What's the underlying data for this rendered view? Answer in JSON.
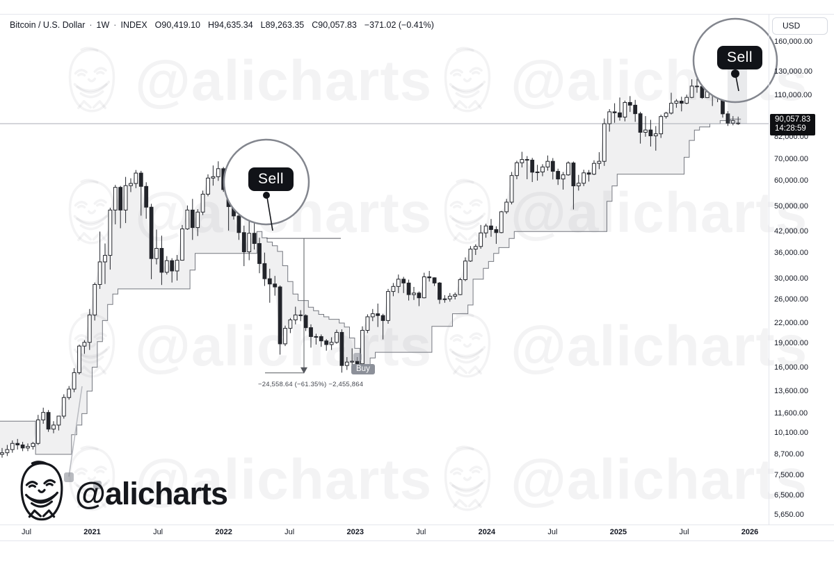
{
  "legend": {
    "symbol": "Bitcoin / U.S. Dollar",
    "sep": "·",
    "interval": "1W",
    "exchange": "INDEX",
    "o": "O90,419.10",
    "h": "H94,635.34",
    "l": "L89,263.35",
    "c": "C90,057.83",
    "change": "−371.02 (−0.41%)"
  },
  "price_axis": {
    "currency_button": "USD",
    "ticks": [
      {
        "v": 160000,
        "label": "160,000.00"
      },
      {
        "v": 130000,
        "label": "130,000.00"
      },
      {
        "v": 110000,
        "label": "110,000.00"
      },
      {
        "v": 94000,
        "label": "94,000.00"
      },
      {
        "v": 82000,
        "label": "82,000.00"
      },
      {
        "v": 70000,
        "label": "70,000.00"
      },
      {
        "v": 60000,
        "label": "60,000.00"
      },
      {
        "v": 50000,
        "label": "50,000.00"
      },
      {
        "v": 42000,
        "label": "42,000.00"
      },
      {
        "v": 36000,
        "label": "36,000.00"
      },
      {
        "v": 30000,
        "label": "30,000.00"
      },
      {
        "v": 26000,
        "label": "26,000.00"
      },
      {
        "v": 22000,
        "label": "22,000.00"
      },
      {
        "v": 19000,
        "label": "19,000.00"
      },
      {
        "v": 16000,
        "label": "16,000.00"
      },
      {
        "v": 13600,
        "label": "13,600.00"
      },
      {
        "v": 11600,
        "label": "11,600.00"
      },
      {
        "v": 10100,
        "label": "10,100.00"
      },
      {
        "v": 8700,
        "label": "8,700.00"
      },
      {
        "v": 7500,
        "label": "7,500.00"
      },
      {
        "v": 6500,
        "label": "6,500.00"
      },
      {
        "v": 5650,
        "label": "5,650.00"
      }
    ],
    "badge": {
      "price": "90,057.83",
      "countdown": "14:28:59",
      "value": 90057.83
    }
  },
  "time_axis": {
    "ticks": [
      {
        "label": "Jul",
        "bold": false
      },
      {
        "label": "2021",
        "bold": true
      },
      {
        "label": "Jul",
        "bold": false
      },
      {
        "label": "2022",
        "bold": true
      },
      {
        "label": "Jul",
        "bold": false
      },
      {
        "label": "2023",
        "bold": true
      },
      {
        "label": "Jul",
        "bold": false
      },
      {
        "label": "2024",
        "bold": true
      },
      {
        "label": "Jul",
        "bold": false
      },
      {
        "label": "2025",
        "bold": true
      },
      {
        "label": "Jul",
        "bold": false
      },
      {
        "label": "2026",
        "bold": true
      }
    ]
  },
  "watermark": {
    "handle": "@alicharts"
  },
  "logo": {
    "handle": "@alicharts"
  },
  "annotations": {
    "sell_early": {
      "label": "Sell",
      "index": 50,
      "price": 40030
    },
    "sell_late": {
      "label": "Sell",
      "index": 143,
      "price": 110000
    },
    "buy": {
      "label": "Buy",
      "index": 70,
      "price": 15800
    },
    "measure": {
      "text": "−24,558.64 (−61.35%) −2,455,864",
      "from_price": 40030.64,
      "to_price": 15472
    }
  },
  "chart_data": {
    "type": "candlestick",
    "title": "Bitcoin / U.S. Dollar · 1W · INDEX",
    "y_scale": "log",
    "ylim": [
      5650,
      175000
    ],
    "current_price": 90057.83,
    "y_ticks": [
      160000,
      130000,
      110000,
      94000,
      82000,
      70000,
      60000,
      50000,
      42000,
      36000,
      30000,
      26000,
      22000,
      19000,
      16000,
      13600,
      11600,
      10100,
      8700,
      7500,
      6500,
      5650
    ],
    "x_tick_labels": [
      "Jul",
      "2021",
      "Jul",
      "2022",
      "Jul",
      "2023",
      "Jul",
      "2024",
      "Jul",
      "2025",
      "Jul",
      "2026"
    ],
    "series_names": [
      "BTCUSD weekly candles [o,h,l,c]",
      "trailing stop line"
    ],
    "candles": [
      [
        8700,
        9100,
        8500,
        8800
      ],
      [
        8800,
        9300,
        8600,
        9000
      ],
      [
        9000,
        9600,
        8800,
        9400
      ],
      [
        9400,
        9700,
        9000,
        9300
      ],
      [
        9300,
        9500,
        8900,
        9100
      ],
      [
        9100,
        9400,
        8900,
        9200
      ],
      [
        9200,
        9500,
        9000,
        9400
      ],
      [
        9400,
        11500,
        9300,
        11100
      ],
      [
        11100,
        12100,
        10800,
        11700
      ],
      [
        11700,
        11900,
        10200,
        10400
      ],
      [
        10400,
        11000,
        10100,
        10700
      ],
      [
        10700,
        11200,
        10300,
        11400
      ],
      [
        11400,
        13300,
        11200,
        13000
      ],
      [
        13000,
        14100,
        12800,
        13800
      ],
      [
        13800,
        16000,
        13500,
        15500
      ],
      [
        15500,
        18900,
        15300,
        18700
      ],
      [
        18700,
        19500,
        17700,
        19200
      ],
      [
        19200,
        24300,
        18200,
        23300
      ],
      [
        23300,
        29300,
        22400,
        28900
      ],
      [
        28900,
        42000,
        28000,
        33900
      ],
      [
        33900,
        38600,
        29000,
        35500
      ],
      [
        35500,
        49700,
        32100,
        48900
      ],
      [
        48900,
        58400,
        44200,
        57400
      ],
      [
        57400,
        58000,
        43000,
        48900
      ],
      [
        48900,
        61800,
        44600,
        58100
      ],
      [
        58100,
        61200,
        55500,
        59000
      ],
      [
        59000,
        64900,
        57100,
        63500
      ],
      [
        63500,
        64500,
        47000,
        57800
      ],
      [
        57800,
        59500,
        46000,
        49900
      ],
      [
        49900,
        51100,
        30000,
        34700
      ],
      [
        34700,
        42600,
        33300,
        37300
      ],
      [
        37300,
        40800,
        28800,
        31500
      ],
      [
        31500,
        35300,
        31000,
        34200
      ],
      [
        34200,
        34800,
        29300,
        31800
      ],
      [
        31800,
        35600,
        29700,
        34300
      ],
      [
        34300,
        44000,
        34200,
        42800
      ],
      [
        42800,
        50500,
        42500,
        48900
      ],
      [
        48900,
        52900,
        39600,
        43200
      ],
      [
        43200,
        49200,
        40700,
        48200
      ],
      [
        48200,
        56100,
        47200,
        54700
      ],
      [
        54700,
        62900,
        53900,
        61300
      ],
      [
        61300,
        67000,
        58100,
        61900
      ],
      [
        61900,
        69000,
        60100,
        65500
      ],
      [
        65500,
        66300,
        55600,
        56500
      ],
      [
        56500,
        59100,
        42300,
        50100
      ],
      [
        50100,
        52100,
        45700,
        46900
      ],
      [
        46900,
        52000,
        39600,
        41700
      ],
      [
        41700,
        43800,
        32900,
        36400
      ],
      [
        36400,
        45800,
        34300,
        41500
      ],
      [
        41500,
        44500,
        37000,
        38600
      ],
      [
        38600,
        40200,
        31300,
        33500
      ],
      [
        33500,
        36200,
        28600,
        30100
      ],
      [
        30100,
        32300,
        25400,
        29000
      ],
      [
        29000,
        30700,
        26700,
        28400
      ],
      [
        28400,
        28700,
        17600,
        19000
      ],
      [
        19000,
        21600,
        18700,
        21200
      ],
      [
        21200,
        22800,
        20500,
        22500
      ],
      [
        22500,
        24700,
        21800,
        23300
      ],
      [
        23300,
        24100,
        22300,
        23200
      ],
      [
        23200,
        23400,
        20800,
        21300
      ],
      [
        21300,
        21800,
        18500,
        20000
      ],
      [
        20000,
        20400,
        18900,
        20000
      ],
      [
        20000,
        20300,
        18600,
        19400
      ],
      [
        19400,
        19650,
        18100,
        18900
      ],
      [
        18900,
        19900,
        18200,
        19200
      ],
      [
        19200,
        21000,
        19000,
        20600
      ],
      [
        20600,
        21050,
        15500,
        16300
      ],
      [
        16300,
        17300,
        15800,
        16700
      ],
      [
        16700,
        18400,
        16300,
        16800
      ],
      [
        16800,
        17300,
        16200,
        16500
      ],
      [
        16500,
        21500,
        16400,
        20900
      ],
      [
        20900,
        23400,
        20500,
        23000
      ],
      [
        23000,
        24300,
        22300,
        23500
      ],
      [
        23500,
        25250,
        21400,
        23200
      ],
      [
        23200,
        23500,
        19600,
        22400
      ],
      [
        22400,
        28000,
        21900,
        27500
      ],
      [
        27500,
        29200,
        26600,
        28500
      ],
      [
        28500,
        31000,
        27200,
        30000
      ],
      [
        30000,
        30500,
        27200,
        29200
      ],
      [
        29200,
        29900,
        25800,
        26900
      ],
      [
        26900,
        28400,
        25900,
        27200
      ],
      [
        27200,
        27500,
        24800,
        26300
      ],
      [
        26300,
        31400,
        26200,
        30500
      ],
      [
        30500,
        31800,
        29500,
        30300
      ],
      [
        30300,
        30400,
        28600,
        29200
      ],
      [
        29200,
        29400,
        25200,
        26000
      ],
      [
        26000,
        26800,
        25400,
        26100
      ],
      [
        26100,
        27200,
        25600,
        26600
      ],
      [
        26600,
        27300,
        26000,
        26900
      ],
      [
        26900,
        30300,
        26800,
        29900
      ],
      [
        29900,
        35000,
        29600,
        34100
      ],
      [
        34100,
        37900,
        33900,
        37100
      ],
      [
        37100,
        38400,
        35600,
        37800
      ],
      [
        37800,
        44000,
        37200,
        41600
      ],
      [
        41600,
        44400,
        40200,
        43700
      ],
      [
        43700,
        45900,
        40500,
        42600
      ],
      [
        42600,
        43600,
        38500,
        41700
      ],
      [
        41700,
        48600,
        41500,
        48300
      ],
      [
        48300,
        52900,
        47600,
        51700
      ],
      [
        51700,
        64000,
        50900,
        62400
      ],
      [
        62400,
        69300,
        60800,
        68300
      ],
      [
        68300,
        73800,
        66100,
        69900
      ],
      [
        69900,
        71600,
        60800,
        69600
      ],
      [
        69600,
        70700,
        59600,
        63900
      ],
      [
        63900,
        67300,
        60200,
        64000
      ],
      [
        64000,
        67600,
        62100,
        66300
      ],
      [
        66300,
        71900,
        64600,
        69000
      ],
      [
        69000,
        70600,
        60700,
        64300
      ],
      [
        64300,
        65500,
        58400,
        60900
      ],
      [
        60900,
        64000,
        56500,
        62700
      ],
      [
        62700,
        69000,
        62300,
        68200
      ],
      [
        68200,
        68900,
        49100,
        58000
      ],
      [
        58000,
        62700,
        56100,
        59100
      ],
      [
        59100,
        65000,
        57900,
        63600
      ],
      [
        63600,
        64900,
        59800,
        63000
      ],
      [
        63000,
        69500,
        62600,
        68000
      ],
      [
        68000,
        73600,
        65300,
        69000
      ],
      [
        69000,
        93400,
        66800,
        90000
      ],
      [
        90000,
        99800,
        85100,
        97900
      ],
      [
        97900,
        104000,
        90600,
        97200
      ],
      [
        97200,
        108300,
        92000,
        94300
      ],
      [
        94300,
        106000,
        91500,
        104600
      ],
      [
        104600,
        109400,
        97800,
        102600
      ],
      [
        102600,
        106500,
        91200,
        96600
      ],
      [
        96600,
        97900,
        78200,
        84700
      ],
      [
        84700,
        95000,
        82100,
        86100
      ],
      [
        86100,
        92500,
        76600,
        82600
      ],
      [
        82600,
        88500,
        74400,
        83800
      ],
      [
        83800,
        95900,
        81400,
        94700
      ],
      [
        94700,
        97900,
        93300,
        97000
      ],
      [
        97000,
        112000,
        96100,
        104000
      ],
      [
        104000,
        107100,
        100700,
        105600
      ],
      [
        105600,
        108900,
        98200,
        104000
      ],
      [
        104000,
        110500,
        103300,
        108400
      ],
      [
        108400,
        123200,
        107800,
        117400
      ],
      [
        117400,
        124500,
        112000,
        117000
      ],
      [
        117000,
        119500,
        107300,
        108200
      ],
      [
        108200,
        117300,
        107900,
        112900
      ],
      [
        112900,
        126200,
        102000,
        114000
      ],
      [
        114000,
        116000,
        104800,
        110100
      ],
      [
        110100,
        111000,
        94000,
        96500
      ],
      [
        96500,
        98300,
        88600,
        90400
      ],
      [
        90400,
        95000,
        89000,
        92000
      ],
      [
        90419,
        94635,
        89263,
        90058
      ]
    ],
    "trail": [
      11000,
      11000,
      11000,
      11000,
      11000,
      11000,
      11000,
      8700,
      8700,
      8700,
      8700,
      8700,
      8700,
      8700,
      10000,
      10700,
      11600,
      13600,
      16100,
      19300,
      22400,
      25100,
      27000,
      28000,
      28000,
      28000,
      28000,
      28000,
      28000,
      28000,
      28000,
      28000,
      28000,
      28000,
      28000,
      28000,
      28000,
      32000,
      36000,
      36000,
      36000,
      36000,
      36000,
      36000,
      36000,
      36000,
      36000,
      36000,
      36000,
      36000,
      42000,
      40200,
      39000,
      38000,
      36500,
      33000,
      29500,
      27000,
      25800,
      25800,
      24600,
      24000,
      23400,
      23000,
      22600,
      22600,
      22000,
      21400,
      19800,
      18400,
      15600,
      16400,
      17200,
      17900,
      17900,
      17900,
      17900,
      17900,
      17900,
      17900,
      17900,
      17900,
      17900,
      17900,
      21500,
      21500,
      21500,
      21500,
      23500,
      23500,
      23500,
      25000,
      30000,
      30000,
      32400,
      34000,
      36000,
      37500,
      37500,
      40000,
      42000,
      42000,
      42000,
      42000,
      42000,
      42000,
      42000,
      42000,
      42000,
      42000,
      42000,
      42000,
      42000,
      42000,
      42000,
      42000,
      42000,
      42000,
      52000,
      58000,
      63000,
      63000,
      63000,
      63000,
      63000,
      63000,
      63000,
      63000,
      63000,
      63000,
      63000,
      63000,
      63000,
      71000,
      80000,
      86000,
      88000,
      88000,
      90000,
      90000,
      92000,
      92000,
      93000,
      93000
    ]
  }
}
